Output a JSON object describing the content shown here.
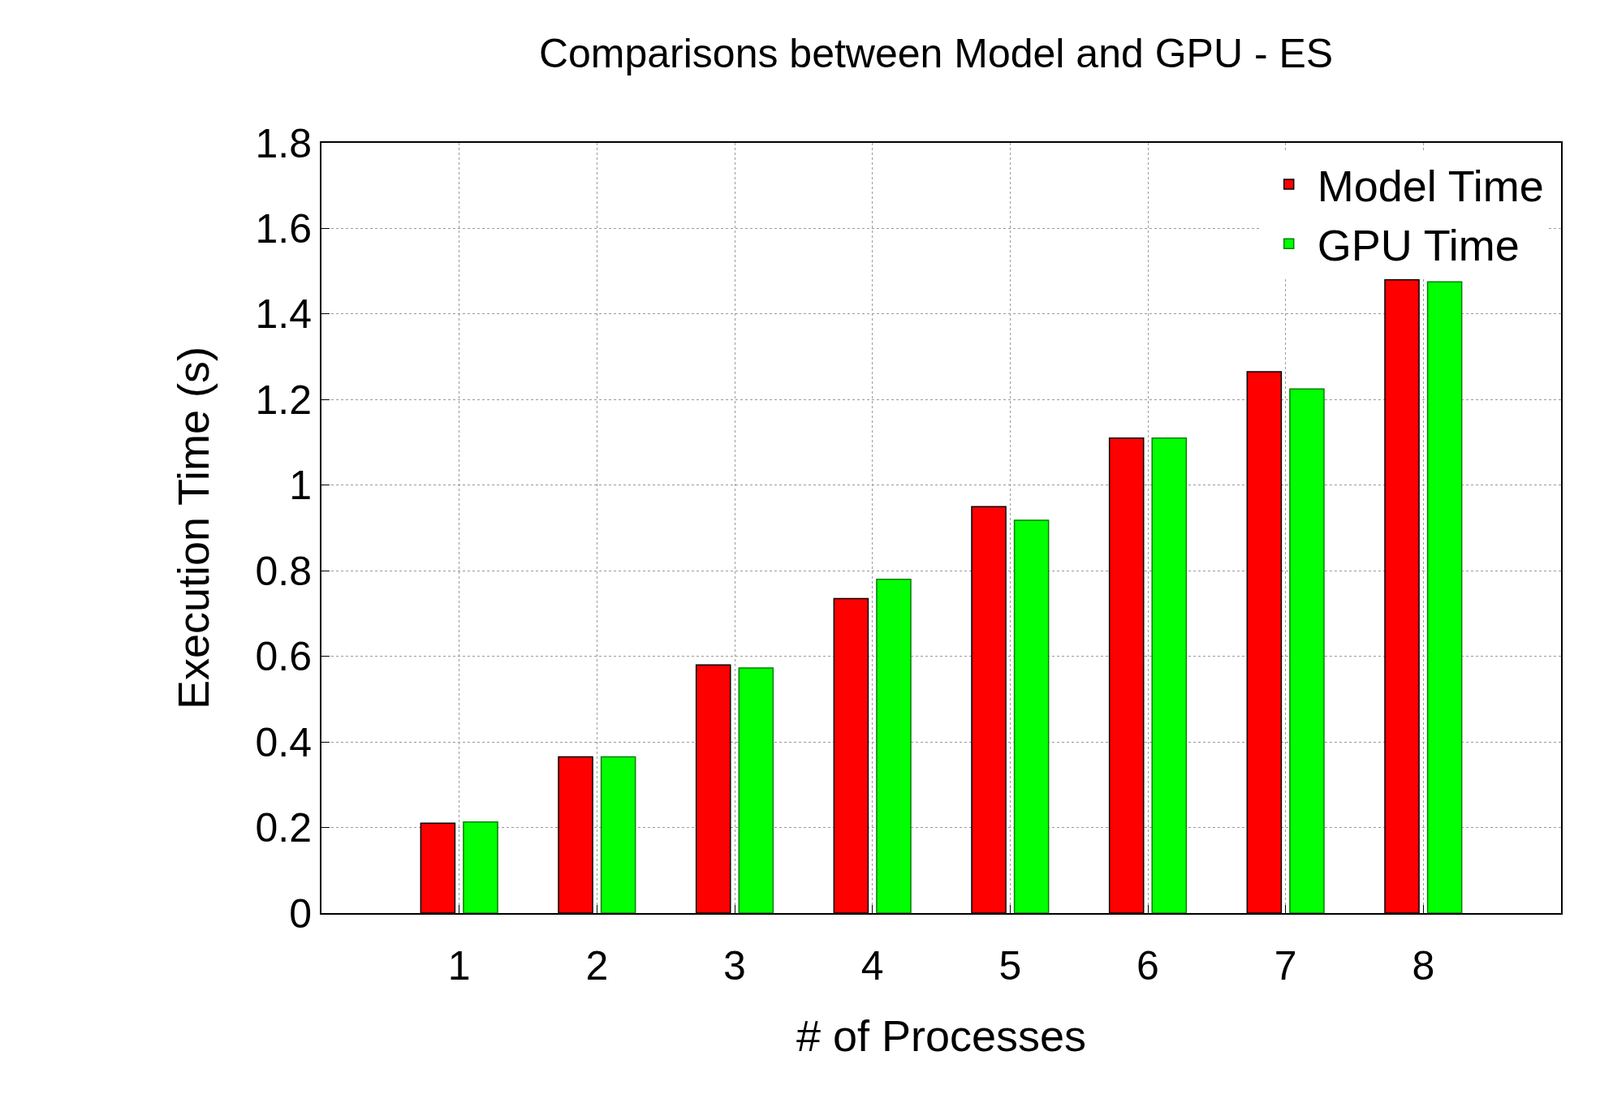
{
  "chart_data": {
    "type": "bar",
    "title": "Comparisons between Model and GPU - ES",
    "x_label": "# of Processes",
    "y_label": "Execution Time (s)",
    "x": [
      1,
      2,
      3,
      4,
      5,
      6,
      7,
      8
    ],
    "xlim": [
      0,
      9
    ],
    "xticks": [
      1,
      2,
      3,
      4,
      5,
      6,
      7,
      8
    ],
    "series": [
      {
        "name": "Model Time",
        "color": "#ff0000",
        "values": [
          0.21,
          0.365,
          0.58,
          0.735,
          0.95,
          1.11,
          1.265,
          1.48
        ]
      },
      {
        "name": "GPU Time",
        "color": "#00ff00",
        "values": [
          0.213,
          0.365,
          0.573,
          0.78,
          0.918,
          1.11,
          1.225,
          1.475
        ]
      }
    ],
    "ylim": [
      0,
      1.8
    ],
    "yticks": [
      0,
      0.2,
      0.4,
      0.6,
      0.8,
      1,
      1.2,
      1.4,
      1.6,
      1.8
    ],
    "grid": true,
    "legend": "upper right"
  }
}
